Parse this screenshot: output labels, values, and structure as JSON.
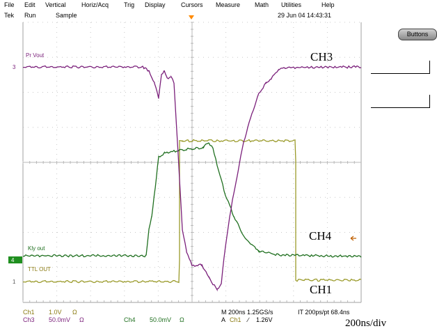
{
  "menu": {
    "file": "File",
    "edit": "Edit",
    "vertical": "Vertical",
    "horiz_acq": "Horiz/Acq",
    "trig": "Trig",
    "display": "Display",
    "cursors": "Cursors",
    "measure": "Measure",
    "math": "Math",
    "utilities": "Utilities",
    "help": "Help"
  },
  "status": {
    "brand": "Tek",
    "run": "Run",
    "mode": "Sample",
    "datetime": "29 Jun 04 14:43:31"
  },
  "buttons_label": "Buttons",
  "waveforms": {
    "ch3_label": "Pr Vout",
    "ch3_marker": "3",
    "ch4_label": "Kly out",
    "ch4_marker": "4",
    "ch1_label": "TTL OUT",
    "ch1_marker": "1"
  },
  "annotations": {
    "ch3": "CH3",
    "ch4": "CH4",
    "ch1": "CH1",
    "timebase": "200ns/div"
  },
  "readouts": {
    "ch1_name": "Ch1",
    "ch1_scale": "1.0V",
    "ch1_imp": "Ω",
    "ch3_name": "Ch3",
    "ch3_scale": "50.0mV",
    "ch3_imp": "Ω",
    "ch4_name": "Ch4",
    "ch4_scale": "50.0mV",
    "ch4_imp": "Ω",
    "horizontal": "M 200ns 1.25GS/s",
    "interp": "IT 200ps/pt 68.4ns",
    "trigger_prefix": "A",
    "trigger_src": "Ch1",
    "trigger_slope": "∕",
    "trigger_level": "1.26V"
  },
  "colors": {
    "ch1": "#9a9a2a",
    "ch3": "#7a1f7a",
    "ch4": "#1f6f1f",
    "trigger": "#ff8a00",
    "grid": "#b0b0b0"
  }
}
